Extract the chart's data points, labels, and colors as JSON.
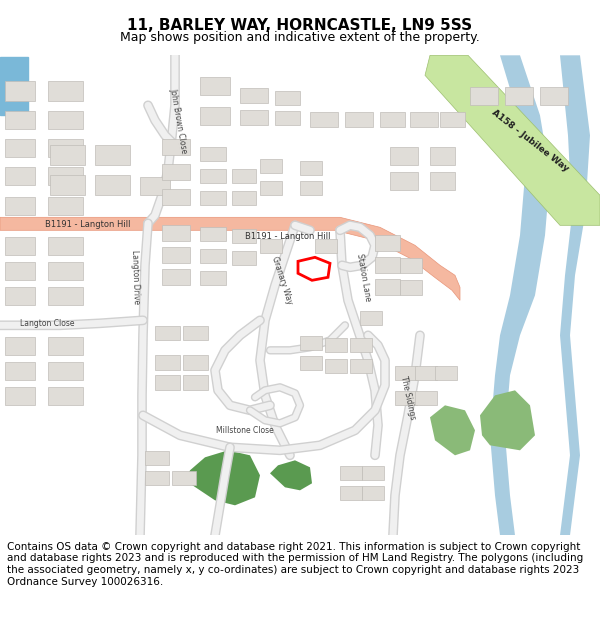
{
  "title": "11, BARLEY WAY, HORNCASTLE, LN9 5SS",
  "subtitle": "Map shows position and indicative extent of the property.",
  "footer": "Contains OS data © Crown copyright and database right 2021. This information is subject to Crown copyright and database rights 2023 and is reproduced with the permission of HM Land Registry. The polygons (including the associated geometry, namely x, y co-ordinates) are subject to Crown copyright and database rights 2023 Ordnance Survey 100026316.",
  "map_bg": "#ffffff",
  "road_b1191_color": "#f5b8a0",
  "road_b1191_outline": "#e8967a",
  "road_a158_color": "#c8e6a0",
  "road_a158_outline": "#9dbf70",
  "road_minor_color": "#f0f0f0",
  "road_minor_outline": "#d0d0d0",
  "building_fill": "#e0ddd8",
  "building_outline": "#c0bdb8",
  "green_fill": "#5a9a50",
  "water_fill": "#a8cce0",
  "blue_left": "#7ab8d8",
  "title_fontsize": 11,
  "subtitle_fontsize": 9,
  "footer_fontsize": 7.5
}
